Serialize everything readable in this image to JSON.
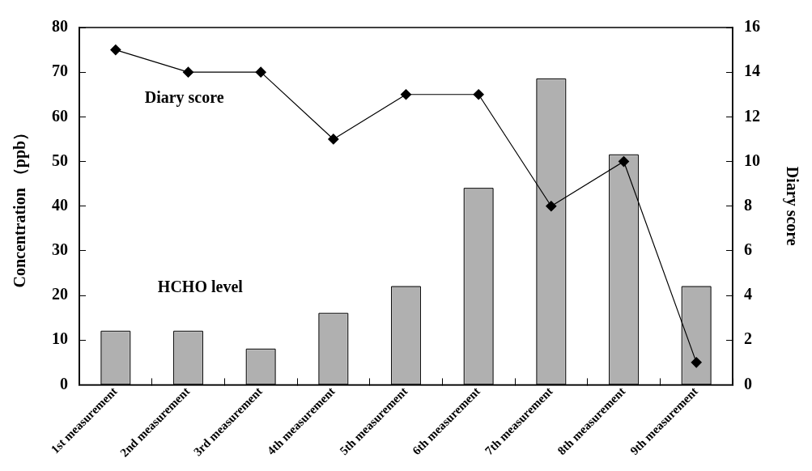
{
  "chart_data": {
    "type": "bar",
    "categories": [
      "1st measurement",
      "2nd measurement",
      "3rd measurement",
      "4th measurement",
      "5th measurement",
      "6th measurement",
      "7th measurement",
      "8th measurement",
      "9th measurement"
    ],
    "ylabel": "Concentration （ppb）",
    "y2label": "Diary score",
    "ylim": [
      0,
      80
    ],
    "yticks": [
      0,
      10,
      20,
      30,
      40,
      50,
      60,
      70,
      80
    ],
    "y2lim": [
      0,
      16
    ],
    "y2ticks": [
      0,
      2,
      4,
      6,
      8,
      10,
      12,
      14,
      16
    ],
    "grid": false,
    "legend": false,
    "series": [
      {
        "name": "HCHO level",
        "color": "#b0b0b0",
        "values": [
          12,
          12,
          8,
          16,
          22,
          44,
          68.5,
          51.5,
          22
        ]
      },
      {
        "name": "Diary score",
        "type": "line",
        "axis": "y2",
        "color": "#000000",
        "marker": "diamond",
        "line_style": "solid",
        "values": [
          15,
          14,
          14,
          11,
          13,
          13,
          8,
          10,
          1
        ]
      }
    ]
  }
}
